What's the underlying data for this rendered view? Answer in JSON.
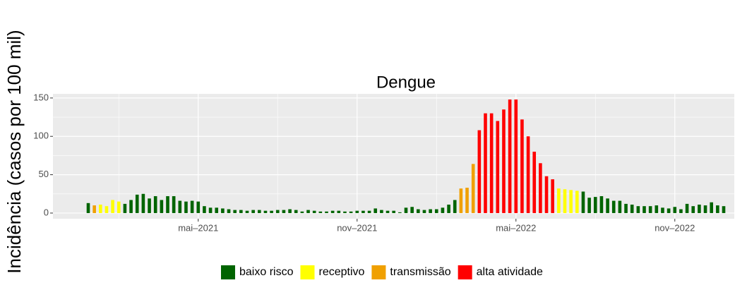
{
  "chart_data": {
    "type": "bar",
    "title": "Dengue",
    "y_label": "Incidência (casos por 100 mil)",
    "categories": [
      null,
      null,
      null,
      null,
      null,
      null,
      null,
      null,
      null,
      null,
      null,
      null,
      null,
      null,
      null,
      null,
      null,
      null,
      "mai–2021",
      null,
      null,
      null,
      null,
      null,
      null,
      null,
      null,
      null,
      null,
      null,
      null,
      null,
      null,
      null,
      null,
      null,
      null,
      null,
      null,
      null,
      null,
      null,
      null,
      null,
      "nov–2021",
      null,
      null,
      null,
      null,
      null,
      null,
      null,
      null,
      null,
      null,
      null,
      null,
      null,
      null,
      null,
      null,
      null,
      null,
      null,
      null,
      null,
      null,
      null,
      null,
      null,
      "mai–2022",
      null,
      null,
      null,
      null,
      null,
      null,
      null,
      null,
      null,
      null,
      null,
      null,
      null,
      null,
      null,
      null,
      null,
      null,
      null,
      null,
      null,
      null,
      null,
      null,
      null,
      "nov–2022",
      null,
      null,
      null,
      null,
      null,
      null,
      null,
      null
    ],
    "values": [
      13,
      10,
      11,
      9,
      17,
      15,
      12,
      17,
      24,
      25,
      19,
      22,
      17,
      22,
      22,
      16,
      15,
      16,
      15,
      9,
      7,
      7,
      6,
      5,
      4,
      4,
      3,
      4,
      4,
      3,
      3,
      4,
      4,
      5,
      4,
      2,
      4,
      3,
      2,
      2,
      3,
      3,
      2,
      2,
      3,
      3,
      3,
      6,
      4,
      3,
      3,
      1,
      7,
      8,
      5,
      4,
      5,
      5,
      7,
      11,
      17,
      32,
      33,
      64,
      108,
      130,
      130,
      120,
      135,
      148,
      148,
      122,
      100,
      80,
      65,
      48,
      44,
      32,
      31,
      30,
      29,
      28,
      20,
      21,
      22,
      19,
      16,
      16,
      12,
      11,
      9,
      9,
      9,
      10,
      7,
      6,
      8,
      5,
      12,
      9,
      11,
      10,
      14,
      10,
      9
    ],
    "colors": [
      "#006400",
      "#f0a000",
      "#ffff00",
      "#ffff00",
      "#ffff00",
      "#ffff00",
      "#006400",
      "#006400",
      "#006400",
      "#006400",
      "#006400",
      "#006400",
      "#006400",
      "#006400",
      "#006400",
      "#006400",
      "#006400",
      "#006400",
      "#006400",
      "#006400",
      "#006400",
      "#006400",
      "#006400",
      "#006400",
      "#006400",
      "#006400",
      "#006400",
      "#006400",
      "#006400",
      "#006400",
      "#006400",
      "#006400",
      "#006400",
      "#006400",
      "#006400",
      "#006400",
      "#006400",
      "#006400",
      "#006400",
      "#006400",
      "#006400",
      "#006400",
      "#006400",
      "#006400",
      "#006400",
      "#006400",
      "#006400",
      "#006400",
      "#006400",
      "#006400",
      "#006400",
      "#006400",
      "#006400",
      "#006400",
      "#006400",
      "#006400",
      "#006400",
      "#006400",
      "#006400",
      "#006400",
      "#006400",
      "#f0a000",
      "#f0a000",
      "#f0a000",
      "#ff0000",
      "#ff0000",
      "#ff0000",
      "#ff0000",
      "#ff0000",
      "#ff0000",
      "#ff0000",
      "#ff0000",
      "#ff0000",
      "#ff0000",
      "#ff0000",
      "#ff0000",
      "#ff0000",
      "#ffff00",
      "#ffff00",
      "#ffff00",
      "#ffff00",
      "#006400",
      "#006400",
      "#006400",
      "#006400",
      "#006400",
      "#006400",
      "#006400",
      "#006400",
      "#006400",
      "#006400",
      "#006400",
      "#006400",
      "#006400",
      "#006400",
      "#006400",
      "#006400",
      "#006400",
      "#006400",
      "#006400",
      "#006400",
      "#006400",
      "#006400",
      "#006400",
      "#006400"
    ],
    "legend": [
      {
        "name": "baixo risco",
        "color": "#006400"
      },
      {
        "name": "receptivo",
        "color": "#ffff00"
      },
      {
        "name": "transmissão",
        "color": "#f0a000"
      },
      {
        "name": "alta atividade",
        "color": "#ff0000"
      }
    ],
    "ylim": [
      -7.4,
      155.4
    ],
    "yticks": [
      0,
      50,
      100,
      150
    ],
    "grid": true
  }
}
